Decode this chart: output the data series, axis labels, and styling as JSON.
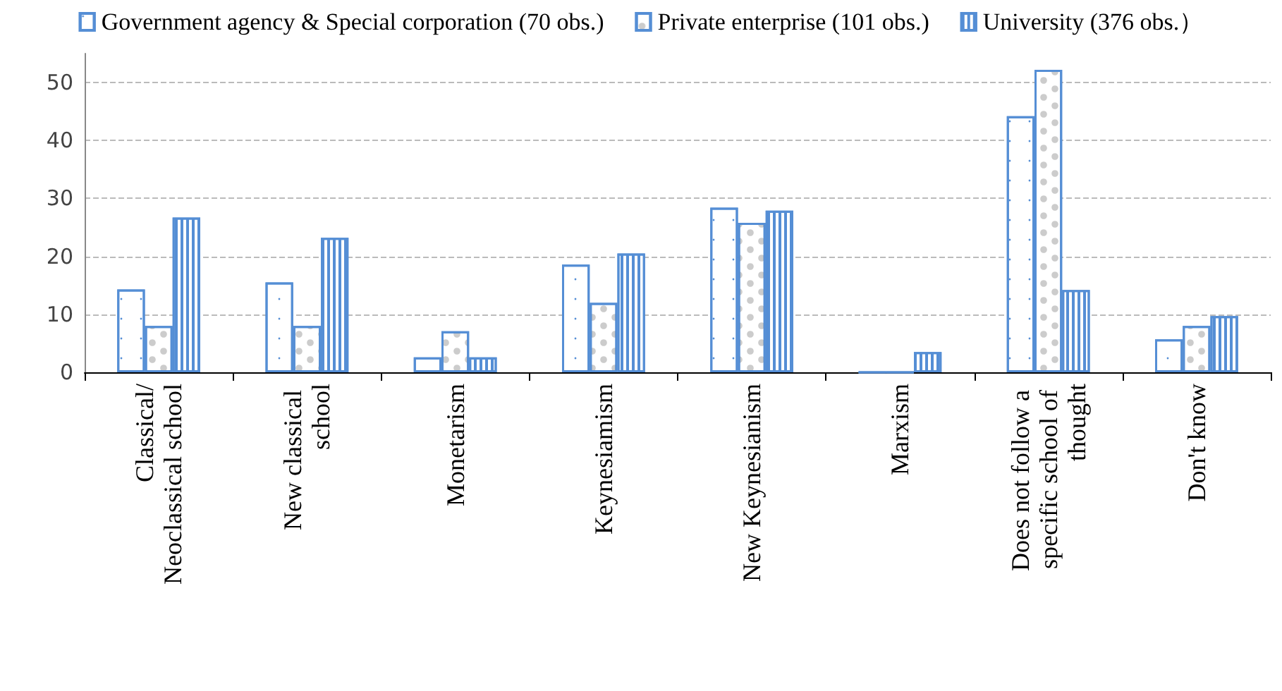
{
  "chart_data": {
    "type": "bar",
    "categories": [
      "Classical/Neoclassical school",
      "New classical school",
      "Monetarism",
      "Keynesiamism",
      "New Keynesianism",
      "Marxism",
      "Does not follow a specific school of thought",
      "Don't know"
    ],
    "series": [
      {
        "name": "Government agency & Special corporation (70 obs.)",
        "color": "#558ed5",
        "values": [
          14.3,
          15.5,
          2.6,
          18.6,
          28.4,
          0,
          44.2,
          5.7
        ]
      },
      {
        "name": "Private enterprise (101 obs.)",
        "color": "#558ed5",
        "values": [
          8.0,
          8.0,
          7.1,
          12.0,
          25.8,
          0,
          52.2,
          8.0
        ]
      },
      {
        "name": "University (376 obs.）",
        "color": "#558ed5",
        "values": [
          26.7,
          23.2,
          2.6,
          20.5,
          27.9,
          3.5,
          14.2,
          9.7
        ]
      }
    ],
    "ylim": [
      0,
      55
    ],
    "yticks": [
      0,
      10,
      20,
      30,
      40,
      50
    ],
    "grid": "y",
    "legend": "top"
  }
}
